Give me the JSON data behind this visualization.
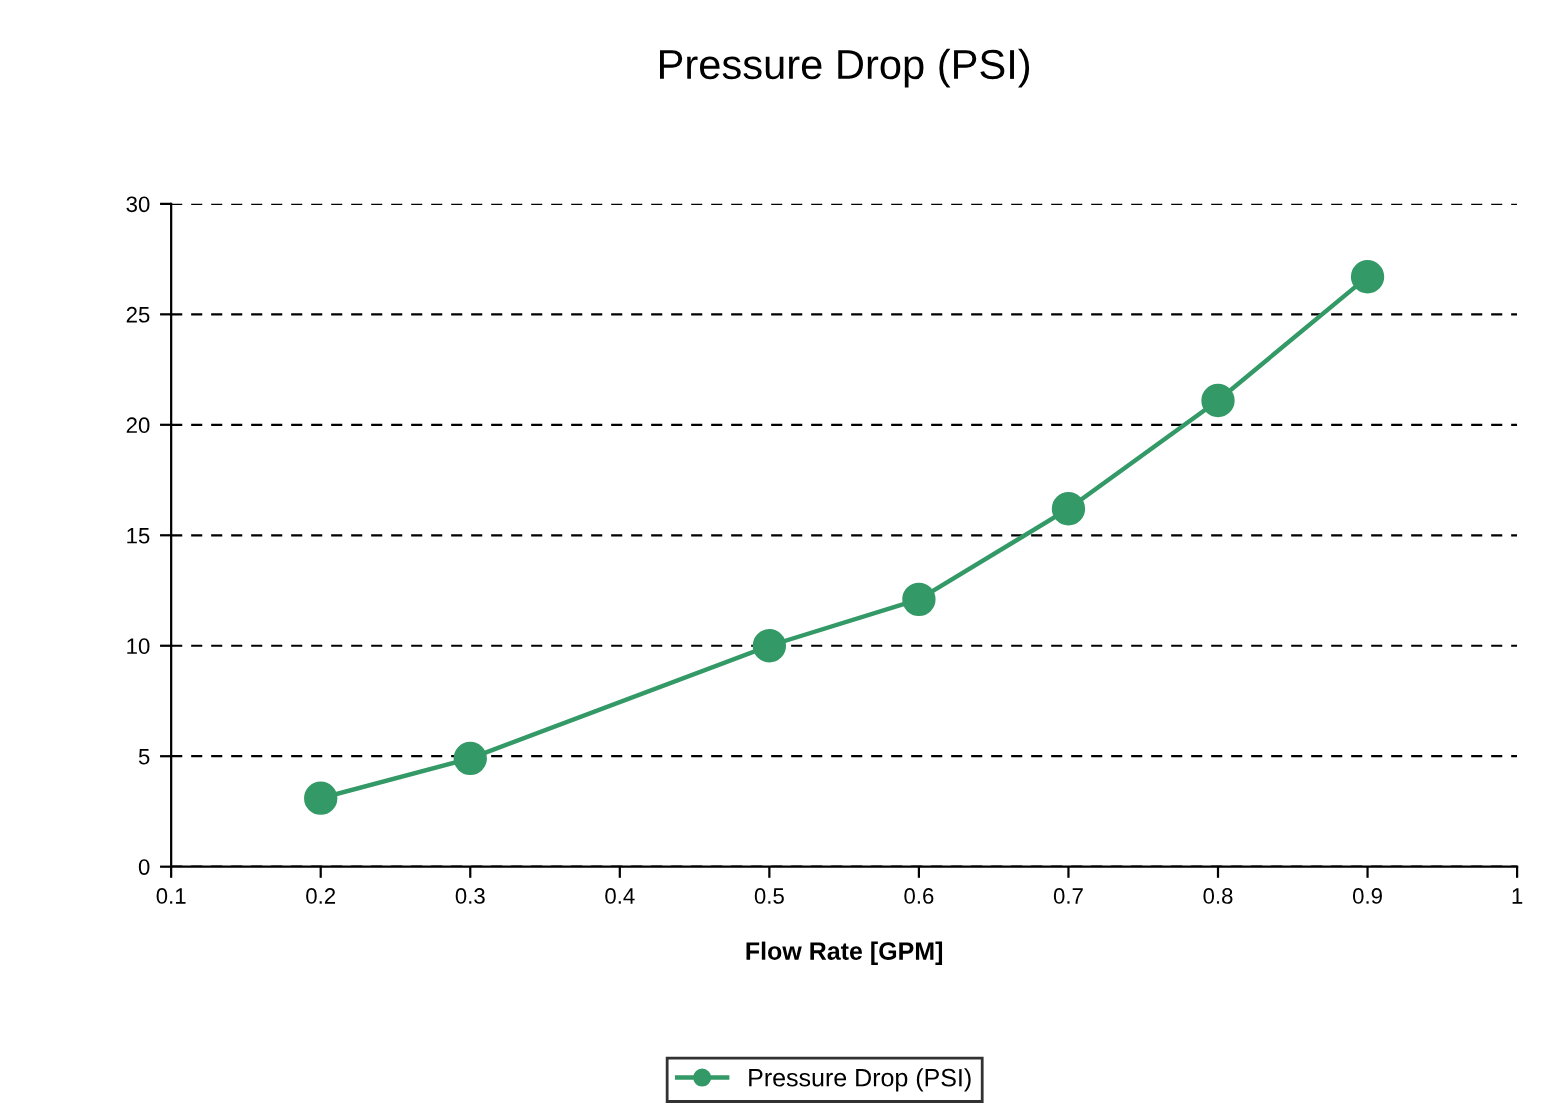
{
  "chart_data": {
    "type": "line",
    "title": "Pressure Drop (PSI)",
    "xlabel": "Flow Rate [GPM]",
    "x": [
      0.2,
      0.3,
      0.5,
      0.6,
      0.7,
      0.8,
      0.9
    ],
    "series": [
      {
        "name": "Pressure Drop (PSI)",
        "color": "#339966",
        "values": [
          3.1,
          4.9,
          10.0,
          12.1,
          16.2,
          21.1,
          26.7
        ]
      }
    ],
    "xlim": [
      0.1,
      1
    ],
    "xticks": [
      0.1,
      0.2,
      0.3,
      0.4,
      0.5,
      0.6,
      0.7,
      0.8,
      0.9,
      1
    ],
    "ylim": [
      0,
      30
    ],
    "yticks": [
      0,
      5,
      10,
      15,
      20,
      25,
      30
    ],
    "grid": "y",
    "legend": "bottom",
    "marker": "circle",
    "line_style": "solid"
  }
}
